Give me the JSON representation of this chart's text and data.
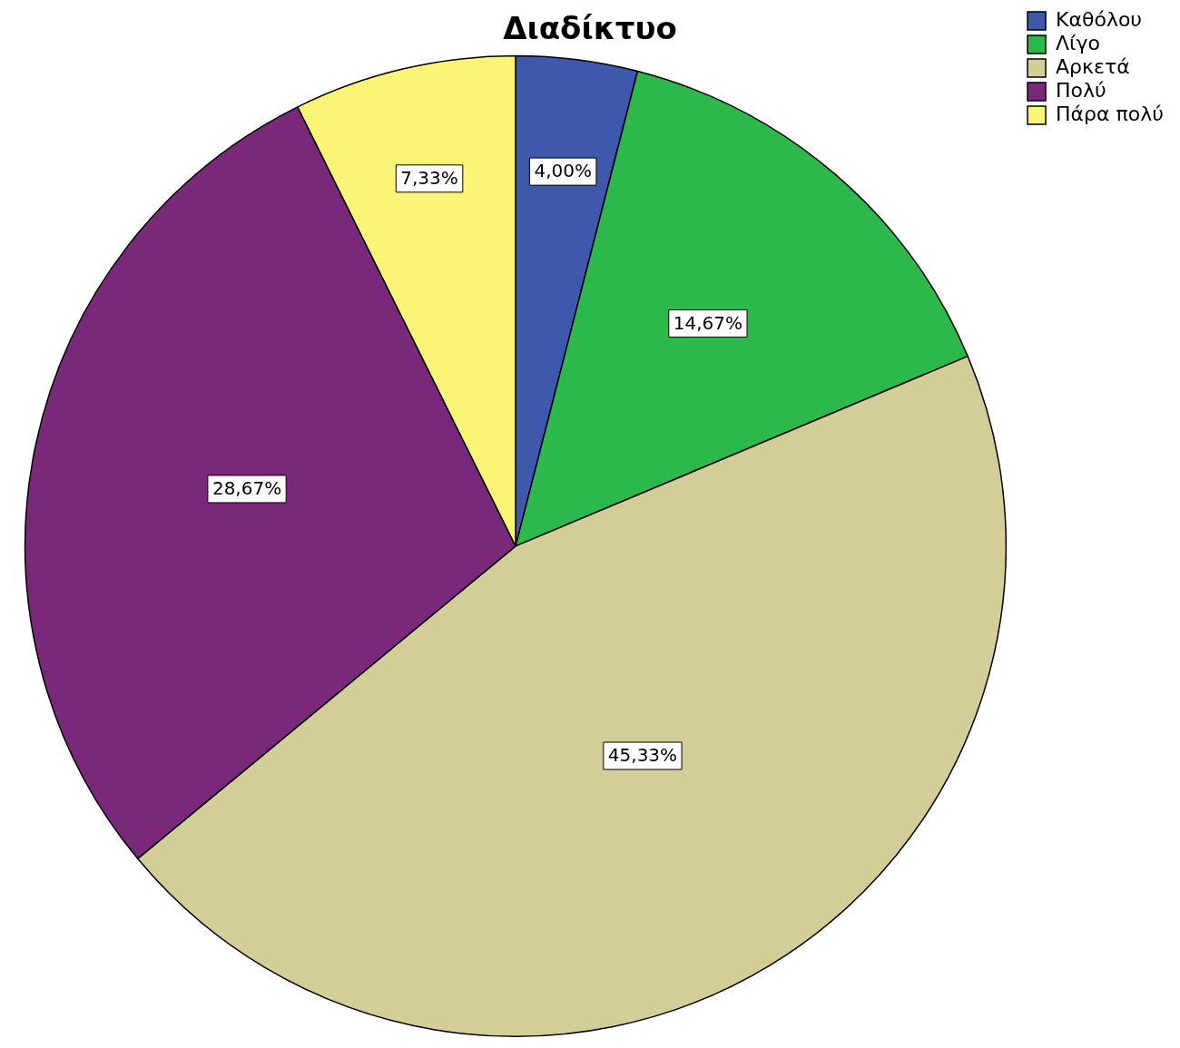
{
  "chart_data": {
    "type": "pie",
    "title": "Διαδίκτυο",
    "categories": [
      "Καθόλου",
      "Λίγο",
      "Αρκετά",
      "Πολύ",
      "Πάρα πολύ"
    ],
    "values": [
      4.0,
      14.67,
      45.33,
      28.67,
      7.33
    ],
    "value_labels": [
      "4,00%",
      "14,67%",
      "45,33%",
      "28,67%",
      "7,33%"
    ],
    "colors": [
      "#3e58ac",
      "#2db84b",
      "#d3ce97",
      "#79287a",
      "#fbf577"
    ],
    "legend": "top right"
  }
}
